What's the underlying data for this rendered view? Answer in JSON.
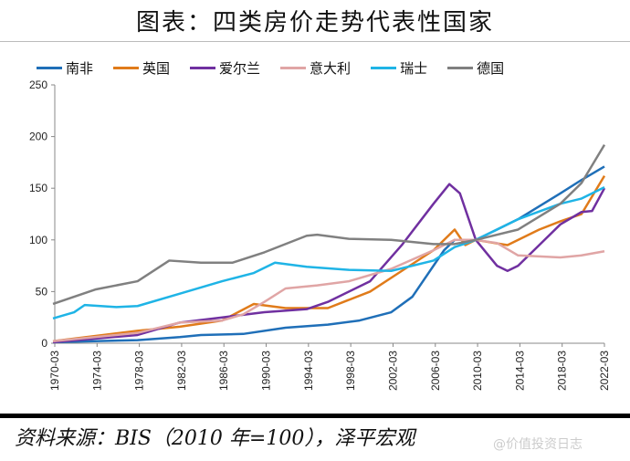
{
  "title": "图表：四类房价走势代表性国家",
  "source": "资料来源：BIS（2010 年=100），泽平宏观",
  "watermark": "@价值投资日志",
  "chart_data": {
    "type": "line",
    "title": "图表：四类房价走势代表性国家",
    "xlabel": "",
    "ylabel": "",
    "ylim": [
      0,
      250
    ],
    "yticks": [
      0,
      50,
      100,
      150,
      200,
      250
    ],
    "xlim": [
      1970.17,
      2022.17
    ],
    "xticks": [
      "1970-03",
      "1974-03",
      "1978-03",
      "1982-03",
      "1986-03",
      "1990-03",
      "1994-03",
      "1998-03",
      "2002-03",
      "2006-03",
      "2010-03",
      "2014-03",
      "2018-03",
      "2022-03"
    ],
    "grid": false,
    "legend": "top",
    "series": [
      {
        "name": "南非",
        "color": "#1f6fb8",
        "points": [
          [
            1970,
            1
          ],
          [
            1978,
            3
          ],
          [
            1982,
            6
          ],
          [
            1984,
            8
          ],
          [
            1988,
            9
          ],
          [
            1992,
            15
          ],
          [
            1996,
            18
          ],
          [
            1999,
            22
          ],
          [
            2002,
            30
          ],
          [
            2004,
            45
          ],
          [
            2005,
            60
          ],
          [
            2007,
            90
          ],
          [
            2008,
            100
          ],
          [
            2010,
            100
          ],
          [
            2014,
            120
          ],
          [
            2018,
            145
          ],
          [
            2020,
            158
          ],
          [
            2022.17,
            171
          ]
        ]
      },
      {
        "name": "英国",
        "color": "#e07b1a",
        "points": [
          [
            1970,
            2
          ],
          [
            1978,
            12
          ],
          [
            1982,
            16
          ],
          [
            1986,
            22
          ],
          [
            1989,
            38
          ],
          [
            1992,
            34
          ],
          [
            1996,
            34
          ],
          [
            2000,
            50
          ],
          [
            2003,
            70
          ],
          [
            2006,
            90
          ],
          [
            2008,
            110
          ],
          [
            2009,
            95
          ],
          [
            2010,
            100
          ],
          [
            2013,
            95
          ],
          [
            2016,
            110
          ],
          [
            2018,
            118
          ],
          [
            2020,
            125
          ],
          [
            2022.17,
            162
          ]
        ]
      },
      {
        "name": "爱尔兰",
        "color": "#7030a0",
        "points": [
          [
            1970,
            1
          ],
          [
            1978,
            8
          ],
          [
            1982,
            20
          ],
          [
            1986,
            25
          ],
          [
            1990,
            30
          ],
          [
            1994,
            33
          ],
          [
            1996,
            40
          ],
          [
            2000,
            60
          ],
          [
            2003,
            95
          ],
          [
            2006,
            135
          ],
          [
            2007.5,
            154
          ],
          [
            2008.5,
            145
          ],
          [
            2010,
            100
          ],
          [
            2012,
            75
          ],
          [
            2013,
            70
          ],
          [
            2014,
            75
          ],
          [
            2016,
            95
          ],
          [
            2018,
            115
          ],
          [
            2020,
            127
          ],
          [
            2021,
            128
          ],
          [
            2022.17,
            150
          ]
        ]
      },
      {
        "name": "意大利",
        "color": "#e0a5a5",
        "points": [
          [
            1970,
            2
          ],
          [
            1978,
            10
          ],
          [
            1982,
            20
          ],
          [
            1986,
            22
          ],
          [
            1988,
            28
          ],
          [
            1990,
            40
          ],
          [
            1992,
            53
          ],
          [
            1995,
            56
          ],
          [
            1998,
            60
          ],
          [
            2002,
            72
          ],
          [
            2006,
            90
          ],
          [
            2008,
            100
          ],
          [
            2010,
            100
          ],
          [
            2012,
            97
          ],
          [
            2014,
            85
          ],
          [
            2018,
            83
          ],
          [
            2020,
            85
          ],
          [
            2022.17,
            89
          ]
        ]
      },
      {
        "name": "瑞士",
        "color": "#1fb4e6",
        "points": [
          [
            1970,
            24
          ],
          [
            1972,
            30
          ],
          [
            1973,
            37
          ],
          [
            1976,
            35
          ],
          [
            1978,
            36
          ],
          [
            1982,
            48
          ],
          [
            1986,
            60
          ],
          [
            1989,
            68
          ],
          [
            1991,
            78
          ],
          [
            1994,
            74
          ],
          [
            1998,
            71
          ],
          [
            2002,
            70
          ],
          [
            2006,
            80
          ],
          [
            2008,
            93
          ],
          [
            2010,
            100
          ],
          [
            2012,
            110
          ],
          [
            2014,
            120
          ],
          [
            2018,
            135
          ],
          [
            2020,
            140
          ],
          [
            2022.17,
            151
          ]
        ]
      },
      {
        "name": "德国",
        "color": "#808080",
        "points": [
          [
            1970,
            38
          ],
          [
            1974,
            52
          ],
          [
            1978,
            60
          ],
          [
            1981,
            80
          ],
          [
            1984,
            78
          ],
          [
            1987,
            78
          ],
          [
            1990,
            88
          ],
          [
            1994,
            104
          ],
          [
            1995,
            105
          ],
          [
            1998,
            101
          ],
          [
            2002,
            100
          ],
          [
            2006,
            96
          ],
          [
            2008,
            96
          ],
          [
            2010,
            100
          ],
          [
            2014,
            110
          ],
          [
            2018,
            135
          ],
          [
            2020,
            155
          ],
          [
            2022.17,
            192
          ]
        ]
      }
    ]
  }
}
